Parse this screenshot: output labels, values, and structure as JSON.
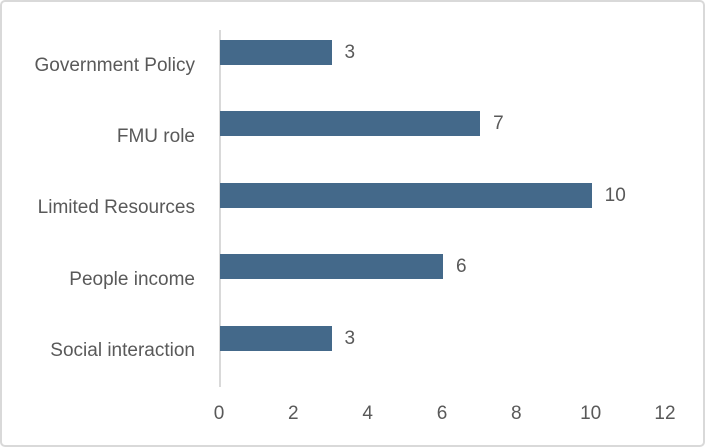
{
  "chart_data": {
    "type": "bar",
    "orientation": "horizontal",
    "title": "",
    "xlabel": "",
    "ylabel": "",
    "categories": [
      "Government Policy",
      "FMU role",
      "Limited Resources",
      "People income",
      "Social interaction"
    ],
    "values": [
      3,
      7,
      10,
      6,
      3
    ],
    "data_labels": [
      "3",
      "7",
      "10",
      "6",
      "3"
    ],
    "xlim": [
      0,
      12
    ],
    "xticks": [
      "0",
      "2",
      "4",
      "6",
      "8",
      "10",
      "12"
    ],
    "grid": false,
    "legend": false,
    "layout_hints": {
      "category_order": "top-to-bottom",
      "value_labels_position": "outside-end",
      "axis_line": "category-axis-only"
    },
    "colors": {
      "bar_fill": "#44698A",
      "label_text": "#595959",
      "axis_line": "#D9D9D9",
      "chart_border": "#D9D9D9",
      "background": "#FFFFFF"
    }
  }
}
